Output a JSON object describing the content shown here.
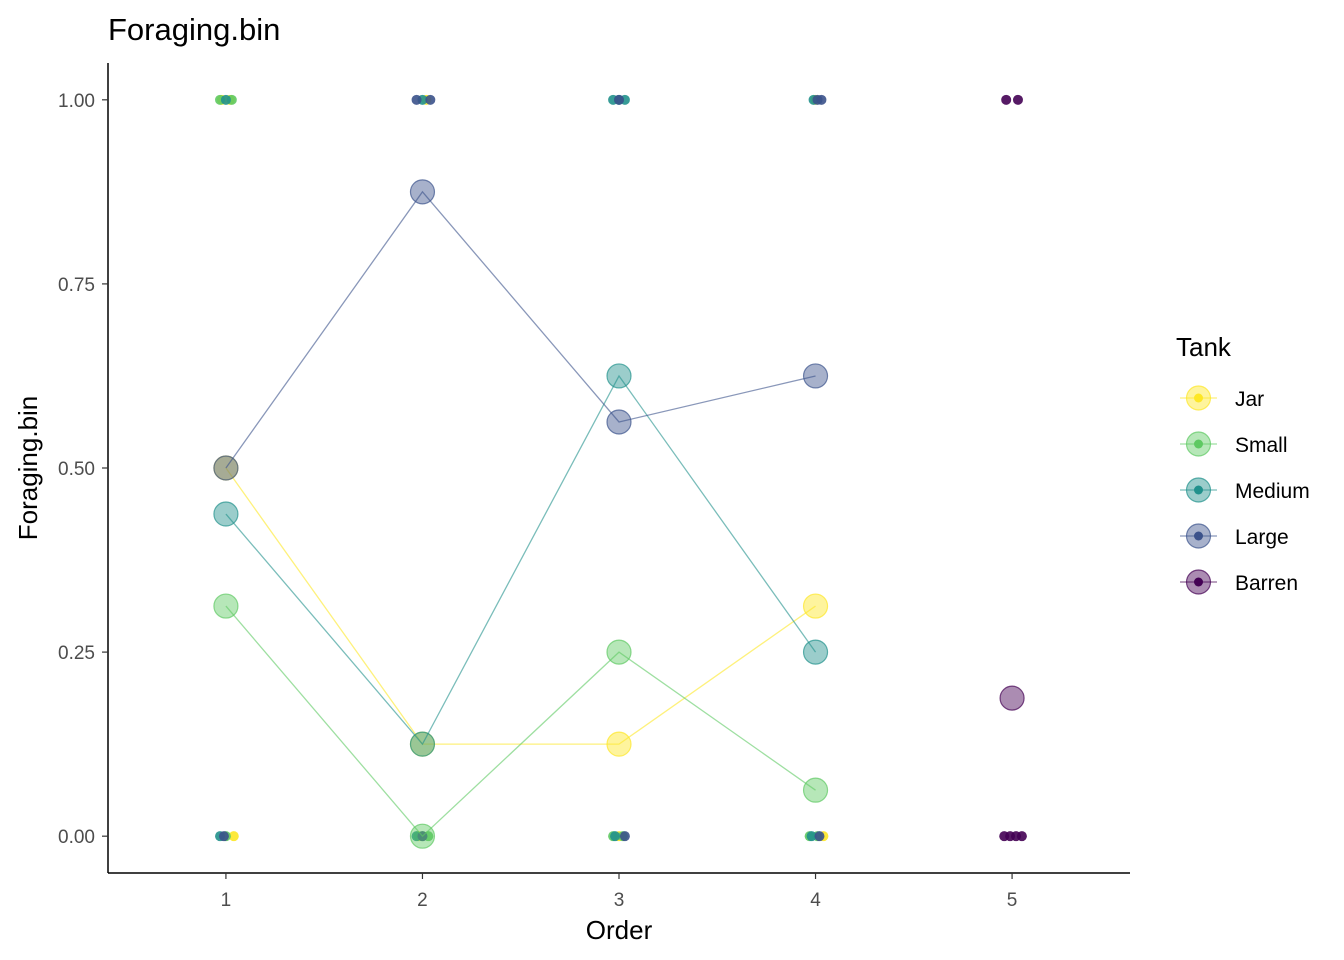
{
  "chart_data": {
    "type": "line",
    "title": "Foraging.bin",
    "xlabel": "Order",
    "ylabel": "Foraging.bin",
    "x_ticks": [
      "1",
      "2",
      "3",
      "4",
      "5"
    ],
    "y_ticks": [
      "0.00",
      "0.25",
      "0.50",
      "0.75",
      "1.00"
    ],
    "xlim": [
      0.4,
      5.6
    ],
    "ylim": [
      -0.05,
      1.05
    ],
    "grid": false,
    "legend": {
      "title": "Tank",
      "position": "right"
    },
    "series": [
      {
        "name": "Jar",
        "color": "#FDE725",
        "means": [
          [
            1,
            0.5
          ],
          [
            2,
            0.125
          ],
          [
            3,
            0.125
          ],
          [
            4,
            0.3125
          ]
        ],
        "raw": [
          [
            0.98,
            1
          ],
          [
            1.02,
            1
          ],
          [
            1.04,
            0
          ],
          [
            2.02,
            1
          ],
          [
            1.98,
            0
          ],
          [
            3.0,
            0
          ],
          [
            4.0,
            1
          ],
          [
            4.04,
            0
          ]
        ]
      },
      {
        "name": "Small",
        "color": "#5EC962",
        "means": [
          [
            1,
            0.3125
          ],
          [
            2,
            0.0
          ],
          [
            3,
            0.25
          ],
          [
            4,
            0.0625
          ]
        ],
        "raw": [
          [
            0.97,
            1
          ],
          [
            1.03,
            1
          ],
          [
            1.0,
            0
          ],
          [
            2.0,
            0
          ],
          [
            2.03,
            0
          ],
          [
            2.97,
            0
          ],
          [
            3.02,
            0
          ],
          [
            3.97,
            0
          ],
          [
            4.01,
            0
          ]
        ]
      },
      {
        "name": "Medium",
        "color": "#21918C",
        "means": [
          [
            1,
            0.4375
          ],
          [
            2,
            0.125
          ],
          [
            3,
            0.625
          ],
          [
            4,
            0.25
          ]
        ],
        "raw": [
          [
            1.0,
            1
          ],
          [
            0.97,
            0
          ],
          [
            2.0,
            1
          ],
          [
            1.97,
            0
          ],
          [
            2.97,
            1
          ],
          [
            3.03,
            1
          ],
          [
            3.0,
            1
          ],
          [
            2.98,
            0
          ],
          [
            3.99,
            1
          ],
          [
            3.98,
            0
          ]
        ]
      },
      {
        "name": "Large",
        "color": "#3B528B",
        "means": [
          [
            1,
            0.5
          ],
          [
            2,
            0.875
          ],
          [
            3,
            0.5625
          ],
          [
            4,
            0.625
          ]
        ],
        "raw": [
          [
            0.99,
            0
          ],
          [
            1.97,
            1
          ],
          [
            2.04,
            1
          ],
          [
            2.0,
            0
          ],
          [
            3.0,
            1
          ],
          [
            3.03,
            0
          ],
          [
            4.01,
            1
          ],
          [
            4.03,
            1
          ],
          [
            4.02,
            0
          ]
        ]
      },
      {
        "name": "Barren",
        "color": "#440154",
        "means": [
          [
            5,
            0.1875
          ]
        ],
        "raw": [
          [
            4.97,
            1
          ],
          [
            5.03,
            1
          ],
          [
            4.96,
            0
          ],
          [
            4.99,
            0
          ],
          [
            5.02,
            0
          ],
          [
            5.05,
            0
          ]
        ]
      }
    ]
  }
}
